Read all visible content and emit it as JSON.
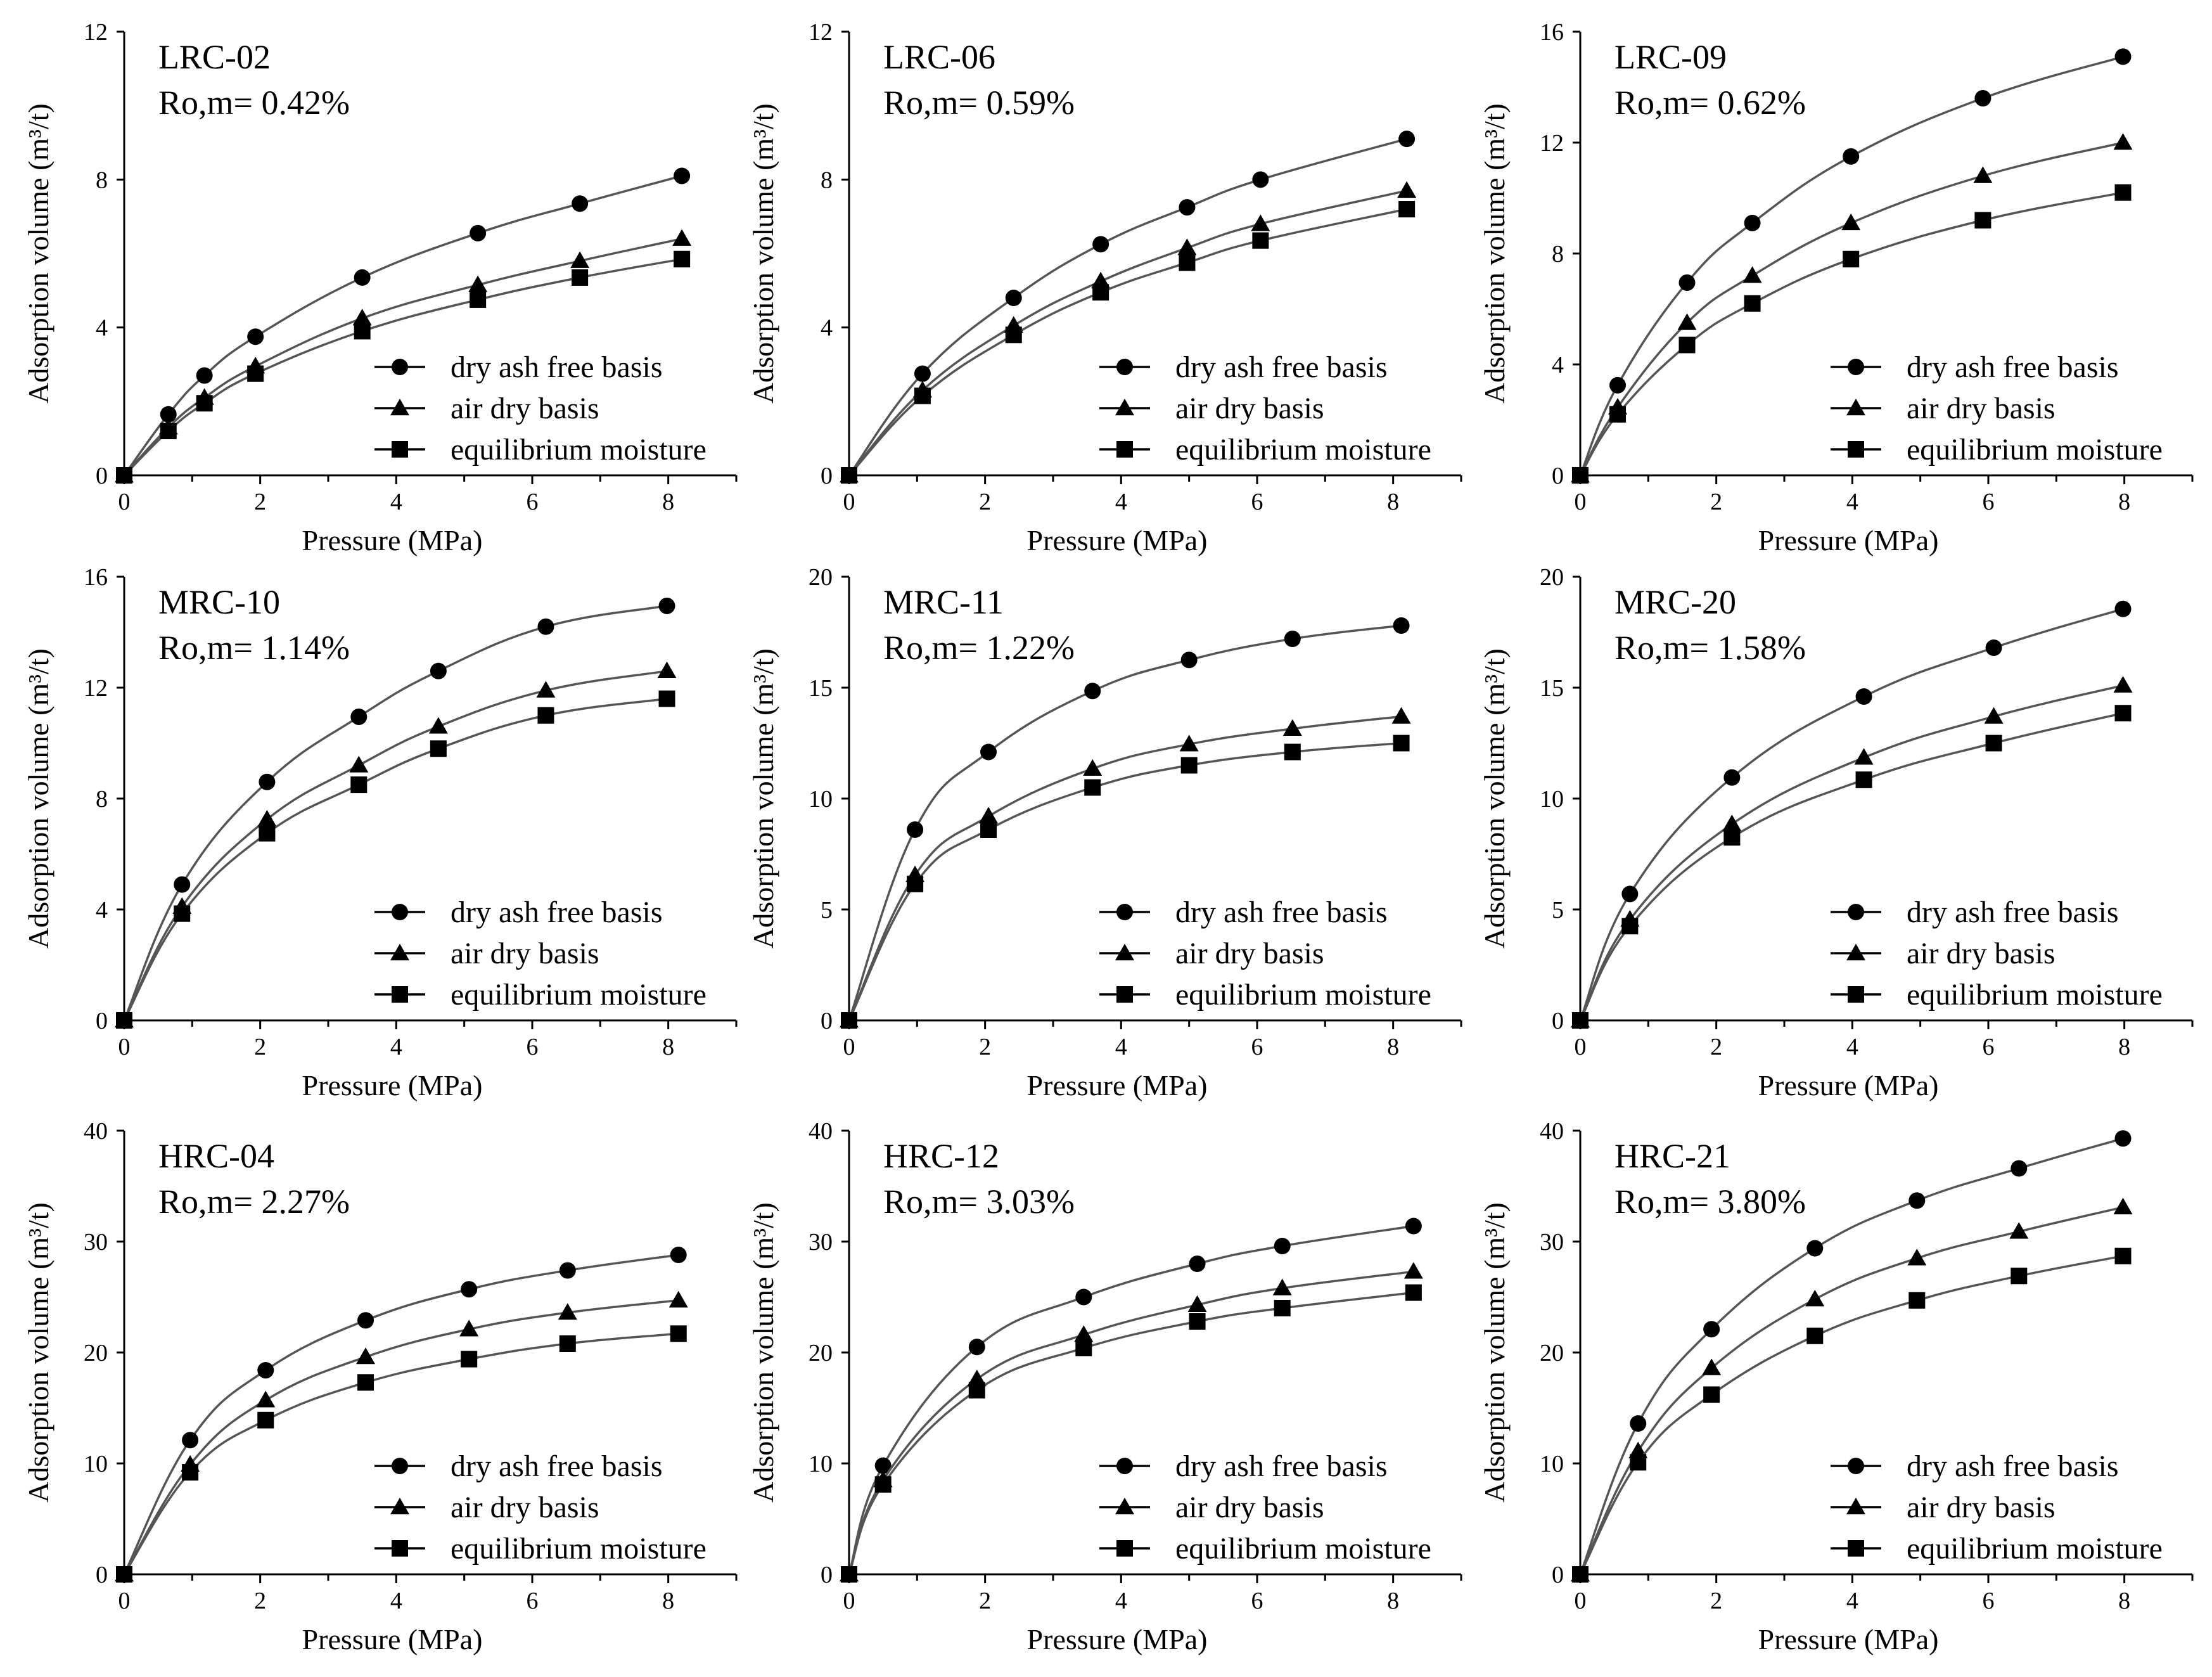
{
  "figure": {
    "legend": [
      {
        "label": "dry ash free basis",
        "marker": "circle"
      },
      {
        "label": "air dry basis",
        "marker": "triangle"
      },
      {
        "label": "equilibrium moisture",
        "marker": "square"
      }
    ],
    "xlabel": "Pressure (MPa)",
    "ylabel": "Adsorption volume (m³/t)"
  },
  "chart_data": [
    {
      "type": "line",
      "sample": "LRC-02",
      "ro_label": "Ro,m= 0.42%",
      "xlabel": "Pressure (MPa)",
      "ylabel": "Adsorption volume (m³/t)",
      "xlim": [
        0,
        9
      ],
      "ylim": [
        0,
        12
      ],
      "xticks": [
        0,
        2,
        4,
        6,
        8
      ],
      "yticks": [
        0,
        4,
        8,
        12
      ],
      "series": [
        {
          "name": "dry ash free basis",
          "marker": "circle",
          "x": [
            0,
            0.65,
            1.18,
            1.93,
            3.5,
            5.2,
            6.7,
            8.2
          ],
          "values": [
            0,
            1.65,
            2.7,
            3.75,
            5.35,
            6.55,
            7.35,
            8.1
          ]
        },
        {
          "name": "air dry basis",
          "marker": "triangle",
          "x": [
            0,
            0.65,
            1.18,
            1.93,
            3.5,
            5.2,
            6.7,
            8.2
          ],
          "values": [
            0,
            1.3,
            2.1,
            2.95,
            4.25,
            5.15,
            5.8,
            6.4
          ]
        },
        {
          "name": "equilibrium moisture",
          "marker": "square",
          "x": [
            0,
            0.65,
            1.18,
            1.93,
            3.5,
            5.2,
            6.7,
            8.2
          ],
          "values": [
            0,
            1.2,
            1.95,
            2.75,
            3.9,
            4.75,
            5.35,
            5.85
          ]
        }
      ]
    },
    {
      "type": "line",
      "sample": "LRC-06",
      "ro_label": "Ro,m= 0.59%",
      "xlabel": "Pressure (MPa)",
      "ylabel": "Adsorption volume (m³/t)",
      "xlim": [
        0,
        9
      ],
      "ylim": [
        0,
        12
      ],
      "xticks": [
        0,
        2,
        4,
        6,
        8
      ],
      "yticks": [
        0,
        4,
        8,
        12
      ],
      "series": [
        {
          "name": "dry ash free basis",
          "marker": "circle",
          "x": [
            0,
            1.08,
            2.42,
            3.7,
            4.97,
            6.05,
            8.2
          ],
          "values": [
            0,
            2.75,
            4.8,
            6.25,
            7.25,
            8.0,
            9.1
          ]
        },
        {
          "name": "air dry basis",
          "marker": "triangle",
          "x": [
            0,
            1.08,
            2.42,
            3.7,
            4.97,
            6.05,
            8.2
          ],
          "values": [
            0,
            2.3,
            4.05,
            5.25,
            6.15,
            6.8,
            7.7
          ]
        },
        {
          "name": "equilibrium moisture",
          "marker": "square",
          "x": [
            0,
            1.08,
            2.42,
            3.7,
            4.97,
            6.05,
            8.2
          ],
          "values": [
            0,
            2.15,
            3.8,
            4.95,
            5.75,
            6.35,
            7.2
          ]
        }
      ]
    },
    {
      "type": "line",
      "sample": "LRC-09",
      "ro_label": "Ro,m= 0.62%",
      "xlabel": "Pressure (MPa)",
      "ylabel": "Adsorption volume (m³/t)",
      "xlim": [
        0,
        9
      ],
      "ylim": [
        0,
        16
      ],
      "xticks": [
        0,
        2,
        4,
        6,
        8
      ],
      "yticks": [
        0,
        4,
        8,
        12,
        16
      ],
      "series": [
        {
          "name": "dry ash free basis",
          "marker": "circle",
          "x": [
            0,
            0.55,
            1.57,
            2.53,
            3.98,
            5.92,
            7.98
          ],
          "values": [
            0,
            3.25,
            6.95,
            9.1,
            11.5,
            13.6,
            15.1
          ]
        },
        {
          "name": "air dry basis",
          "marker": "triangle",
          "x": [
            0,
            0.55,
            1.57,
            2.53,
            3.98,
            5.92,
            7.98
          ],
          "values": [
            0,
            2.45,
            5.5,
            7.2,
            9.1,
            10.8,
            12.0
          ]
        },
        {
          "name": "equilibrium moisture",
          "marker": "square",
          "x": [
            0,
            0.55,
            1.57,
            2.53,
            3.98,
            5.92,
            7.98
          ],
          "values": [
            0,
            2.2,
            4.7,
            6.2,
            7.8,
            9.2,
            10.2
          ]
        }
      ]
    },
    {
      "type": "line",
      "sample": "MRC-10",
      "ro_label": "Ro,m= 1.14%",
      "xlabel": "Pressure (MPa)",
      "ylabel": "Adsorption volume (m³/t)",
      "xlim": [
        0,
        9
      ],
      "ylim": [
        0,
        16
      ],
      "xticks": [
        0,
        2,
        4,
        6,
        8
      ],
      "yticks": [
        0,
        4,
        8,
        12,
        16
      ],
      "series": [
        {
          "name": "dry ash free basis",
          "marker": "circle",
          "x": [
            0,
            0.85,
            2.1,
            3.45,
            4.62,
            6.2,
            7.98
          ],
          "values": [
            0,
            4.9,
            8.6,
            10.95,
            12.6,
            14.2,
            14.95
          ]
        },
        {
          "name": "air dry basis",
          "marker": "triangle",
          "x": [
            0,
            0.85,
            2.1,
            3.45,
            4.62,
            6.2,
            7.98
          ],
          "values": [
            0,
            4.1,
            7.25,
            9.2,
            10.6,
            11.9,
            12.6
          ]
        },
        {
          "name": "equilibrium moisture",
          "marker": "square",
          "x": [
            0,
            0.85,
            2.1,
            3.45,
            4.62,
            6.2,
            7.98
          ],
          "values": [
            0,
            3.85,
            6.75,
            8.5,
            9.8,
            11.0,
            11.6
          ]
        }
      ]
    },
    {
      "type": "line",
      "sample": "MRC-11",
      "ro_label": "Ro,m= 1.22%",
      "xlabel": "Pressure (MPa)",
      "ylabel": "Adsorption volume (m³/t)",
      "xlim": [
        0,
        9
      ],
      "ylim": [
        0,
        20
      ],
      "xticks": [
        0,
        2,
        4,
        6,
        8
      ],
      "yticks": [
        0,
        5,
        10,
        15,
        20
      ],
      "series": [
        {
          "name": "dry ash free basis",
          "marker": "circle",
          "x": [
            0,
            0.97,
            2.05,
            3.58,
            5.0,
            6.52,
            8.12
          ],
          "values": [
            0,
            8.6,
            12.1,
            14.85,
            16.25,
            17.2,
            17.8
          ]
        },
        {
          "name": "air dry basis",
          "marker": "triangle",
          "x": [
            0,
            0.97,
            2.05,
            3.58,
            5.0,
            6.52,
            8.12
          ],
          "values": [
            0,
            6.55,
            9.2,
            11.35,
            12.45,
            13.15,
            13.7
          ]
        },
        {
          "name": "equilibrium moisture",
          "marker": "square",
          "x": [
            0,
            0.97,
            2.05,
            3.58,
            5.0,
            6.52,
            8.12
          ],
          "values": [
            0,
            6.15,
            8.6,
            10.5,
            11.5,
            12.1,
            12.5
          ]
        }
      ]
    },
    {
      "type": "line",
      "sample": "MRC-20",
      "ro_label": "Ro,m= 1.58%",
      "xlabel": "Pressure (MPa)",
      "ylabel": "Adsorption volume (m³/t)",
      "xlim": [
        0,
        9
      ],
      "ylim": [
        0,
        20
      ],
      "xticks": [
        0,
        2,
        4,
        6,
        8
      ],
      "yticks": [
        0,
        5,
        10,
        15,
        20
      ],
      "series": [
        {
          "name": "dry ash free basis",
          "marker": "circle",
          "x": [
            0,
            0.73,
            2.23,
            4.17,
            6.08,
            7.98
          ],
          "values": [
            0,
            5.7,
            10.95,
            14.6,
            16.8,
            18.55
          ]
        },
        {
          "name": "air dry basis",
          "marker": "triangle",
          "x": [
            0,
            0.73,
            2.23,
            4.17,
            6.08,
            7.98
          ],
          "values": [
            0,
            4.55,
            8.85,
            11.85,
            13.7,
            15.1
          ]
        },
        {
          "name": "equilibrium moisture",
          "marker": "square",
          "x": [
            0,
            0.73,
            2.23,
            4.17,
            6.08,
            7.98
          ],
          "values": [
            0,
            4.25,
            8.25,
            10.85,
            12.5,
            13.85
          ]
        }
      ]
    },
    {
      "type": "line",
      "sample": "HRC-04",
      "ro_label": "Ro,m= 2.27%",
      "xlabel": "Pressure (MPa)",
      "ylabel": "Adsorption volume (m³/t)",
      "xlim": [
        0,
        9
      ],
      "ylim": [
        0,
        40
      ],
      "xticks": [
        0,
        2,
        4,
        6,
        8
      ],
      "yticks": [
        0,
        10,
        20,
        30,
        40
      ],
      "series": [
        {
          "name": "dry ash free basis",
          "marker": "circle",
          "x": [
            0,
            0.97,
            2.08,
            3.55,
            5.07,
            6.52,
            8.15
          ],
          "values": [
            0,
            12.1,
            18.4,
            22.9,
            25.7,
            27.4,
            28.8
          ]
        },
        {
          "name": "air dry basis",
          "marker": "triangle",
          "x": [
            0,
            0.97,
            2.08,
            3.55,
            5.07,
            6.52,
            8.15
          ],
          "values": [
            0,
            9.9,
            15.7,
            19.6,
            22.1,
            23.6,
            24.7
          ]
        },
        {
          "name": "equilibrium moisture",
          "marker": "square",
          "x": [
            0,
            0.97,
            2.08,
            3.55,
            5.07,
            6.52,
            8.15
          ],
          "values": [
            0,
            9.2,
            13.9,
            17.3,
            19.4,
            20.8,
            21.7
          ]
        }
      ]
    },
    {
      "type": "line",
      "sample": "HRC-12",
      "ro_label": "Ro,m= 3.03%",
      "xlabel": "Pressure (MPa)",
      "ylabel": "Adsorption volume (m³/t)",
      "xlim": [
        0,
        9
      ],
      "ylim": [
        0,
        40
      ],
      "xticks": [
        0,
        2,
        4,
        6,
        8
      ],
      "yticks": [
        0,
        10,
        20,
        30,
        40
      ],
      "series": [
        {
          "name": "dry ash free basis",
          "marker": "circle",
          "x": [
            0,
            0.5,
            1.88,
            3.45,
            5.12,
            6.37,
            8.3
          ],
          "values": [
            0,
            9.8,
            20.5,
            25.0,
            28.0,
            29.6,
            31.4
          ]
        },
        {
          "name": "air dry basis",
          "marker": "triangle",
          "x": [
            0,
            0.5,
            1.88,
            3.45,
            5.12,
            6.37,
            8.3
          ],
          "values": [
            0,
            8.5,
            17.6,
            21.6,
            24.3,
            25.8,
            27.3
          ]
        },
        {
          "name": "equilibrium moisture",
          "marker": "square",
          "x": [
            0,
            0.5,
            1.88,
            3.45,
            5.12,
            6.37,
            8.3
          ],
          "values": [
            0,
            8.1,
            16.6,
            20.4,
            22.8,
            24.0,
            25.4
          ]
        }
      ]
    },
    {
      "type": "line",
      "sample": "HRC-21",
      "ro_label": "Ro,m= 3.80%",
      "xlabel": "Pressure (MPa)",
      "ylabel": "Adsorption volume (m³/t)",
      "xlim": [
        0,
        9
      ],
      "ylim": [
        0,
        40
      ],
      "xticks": [
        0,
        2,
        4,
        6,
        8
      ],
      "yticks": [
        0,
        10,
        20,
        30,
        40
      ],
      "series": [
        {
          "name": "dry ash free basis",
          "marker": "circle",
          "x": [
            0,
            0.85,
            1.93,
            3.45,
            4.95,
            6.45,
            7.98
          ],
          "values": [
            0,
            13.6,
            22.1,
            29.4,
            33.7,
            36.6,
            39.3
          ]
        },
        {
          "name": "air dry basis",
          "marker": "triangle",
          "x": [
            0,
            0.85,
            1.93,
            3.45,
            4.95,
            6.45,
            7.98
          ],
          "values": [
            0,
            11.1,
            18.6,
            24.8,
            28.5,
            30.9,
            33.1
          ]
        },
        {
          "name": "equilibrium moisture",
          "marker": "square",
          "x": [
            0,
            0.85,
            1.93,
            3.45,
            4.95,
            6.45,
            7.98
          ],
          "values": [
            0,
            10.1,
            16.2,
            21.5,
            24.7,
            26.9,
            28.7
          ]
        }
      ]
    }
  ]
}
